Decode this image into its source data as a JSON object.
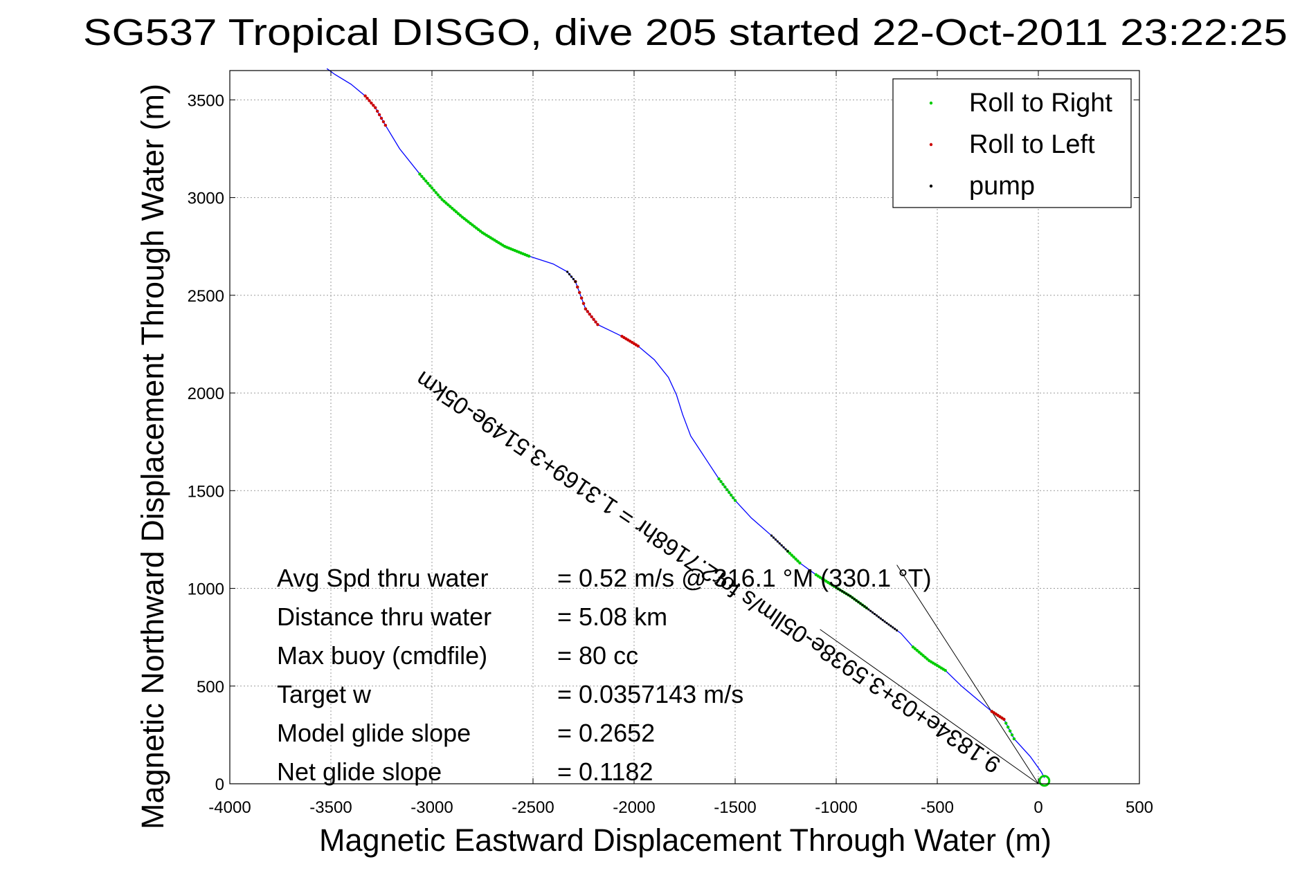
{
  "chart_data": {
    "type": "line",
    "title": "SG537 Tropical DISGO, dive 205 started 22-Oct-2011 23:22:25",
    "xlabel": "Magnetic Eastward Displacement Through Water (m)",
    "ylabel": "Magnetic Northward Displacement Through Water (m)",
    "xlim": [
      -4000,
      500
    ],
    "ylim": [
      0,
      3650
    ],
    "xticks": [
      -4000,
      -3500,
      -3000,
      -2500,
      -2000,
      -1500,
      -1000,
      -500,
      0,
      500
    ],
    "yticks": [
      0,
      500,
      1000,
      1500,
      2000,
      2500,
      3000,
      3500
    ],
    "grid": true,
    "legend_position": "top-right",
    "legend": [
      {
        "label": "Roll to Right",
        "color": "#00cc00"
      },
      {
        "label": "Roll to Left",
        "color": "#cc0000"
      },
      {
        "label": "pump",
        "color": "#000000"
      }
    ],
    "series": [
      {
        "name": "track",
        "color": "#0000ff",
        "x": [
          30,
          15,
          -40,
          -120,
          -170,
          -230,
          -300,
          -380,
          -460,
          -540,
          -620,
          -680,
          -760,
          -850,
          -930,
          -1010,
          -1100,
          -1180,
          -1240,
          -1320,
          -1420,
          -1500,
          -1580,
          -1650,
          -1720,
          -1760,
          -1790,
          -1830,
          -1900,
          -1980,
          -2060,
          -2120,
          -2180,
          -2240,
          -2290,
          -2330,
          -2400,
          -2520,
          -2640,
          -2750,
          -2850,
          -2950,
          -3060,
          -3160,
          -3230,
          -3280,
          -3330,
          -3400,
          -3480,
          -3520
        ],
        "y": [
          30,
          60,
          140,
          230,
          330,
          370,
          430,
          500,
          580,
          630,
          700,
          770,
          830,
          900,
          960,
          1010,
          1070,
          1130,
          1190,
          1270,
          1360,
          1450,
          1560,
          1670,
          1780,
          1890,
          1990,
          2080,
          2170,
          2240,
          2290,
          2320,
          2350,
          2430,
          2570,
          2620,
          2660,
          2700,
          2750,
          2820,
          2900,
          2990,
          3120,
          3250,
          3370,
          3460,
          3520,
          3580,
          3630,
          3660
        ]
      }
    ],
    "roll_right_segments": [
      [
        -120,
        -230
      ],
      [
        -460,
        -620
      ],
      [
        -850,
        -1100
      ],
      [
        -1180,
        -1240
      ],
      [
        -1500,
        -1580
      ],
      [
        -2240,
        -2290
      ],
      [
        -2520,
        -3060
      ]
    ],
    "roll_left_segments": [
      [
        -170,
        -230
      ],
      [
        -2180,
        -2290
      ],
      [
        -1980,
        -2060
      ],
      [
        -3230,
        -3330
      ]
    ],
    "pump_segments": [
      [
        -700,
        -1000
      ],
      [
        -1240,
        -1320
      ],
      [
        -2290,
        -2330
      ]
    ],
    "reference_lines": [
      {
        "x": [
          0,
          -700
        ],
        "y": [
          0,
          1120
        ]
      },
      {
        "x": [
          0,
          -1080
        ],
        "y": [
          0,
          790
        ]
      }
    ],
    "annotation_rotated": "9.1834e+03+3.5938e-05llm/s for2.7168hr = 1.3169+3.5149e-05km",
    "stats": [
      {
        "label": "Avg Spd thru water",
        "value": "=  0.52 m/s @ 316.1 °M (330.1 °T)"
      },
      {
        "label": "Distance thru water",
        "value": "=  5.08 km"
      },
      {
        "label": "Max buoy (cmdfile)",
        "value": "= 80 cc"
      },
      {
        "label": "Target w",
        "value": "= 0.0357143 m/s"
      },
      {
        "label": "Model glide slope",
        "value": "= 0.2652"
      },
      {
        "label": "Net glide slope",
        "value": "= 0.1182"
      }
    ]
  }
}
